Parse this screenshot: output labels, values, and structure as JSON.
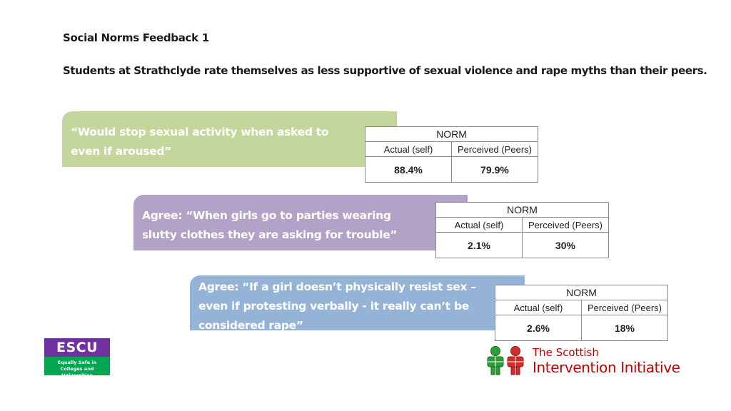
{
  "title": "Social Norms Feedback 1",
  "subtitle": "Students at Strathclyde rate themselves as less supportive of sexual violence and rape myths than their peers.",
  "colors": {
    "banner_green": "#c3d69b",
    "banner_purple": "#b3a2c7",
    "banner_blue": "#95b3d7",
    "actual_value": "#00b050",
    "perceived_value": "#ff0000",
    "escu_purple": "#7030a0",
    "escu_green": "#00a651",
    "sii_red": "#c00000"
  },
  "items": [
    {
      "statement_lines": [
        "“Would stop sexual activity when asked to",
        "even if aroused”"
      ],
      "norm_label": "NORM",
      "actual_label": "Actual (self)",
      "perceived_label": "Perceived (Peers)",
      "actual_value": "88.4%",
      "perceived_value": "79.9%"
    },
    {
      "statement_lines": [
        "Agree: “When girls go to parties wearing",
        "slutty clothes they are asking for trouble”"
      ],
      "norm_label": "NORM",
      "actual_label": "Actual (self)",
      "perceived_label": "Perceived (Peers)",
      "actual_value": "2.1%",
      "perceived_value": "30%"
    },
    {
      "statement_lines": [
        "Agree: “If a girl doesn’t physically resist sex –",
        "even if protesting verbally - it really can’t be",
        "considered rape”"
      ],
      "norm_label": "NORM",
      "actual_label": "Actual (self)",
      "perceived_label": "Perceived (Peers)",
      "actual_value": "2.6%",
      "perceived_value": "18%"
    }
  ],
  "logos": {
    "escu": {
      "acronym": "ESCU",
      "line1": "Equally Safe in",
      "line2": "Colleges and Universities"
    },
    "sii": {
      "line1": "The Scottish",
      "line2": "Intervention Initiative",
      "icon": "two-people-figures-icon"
    }
  }
}
